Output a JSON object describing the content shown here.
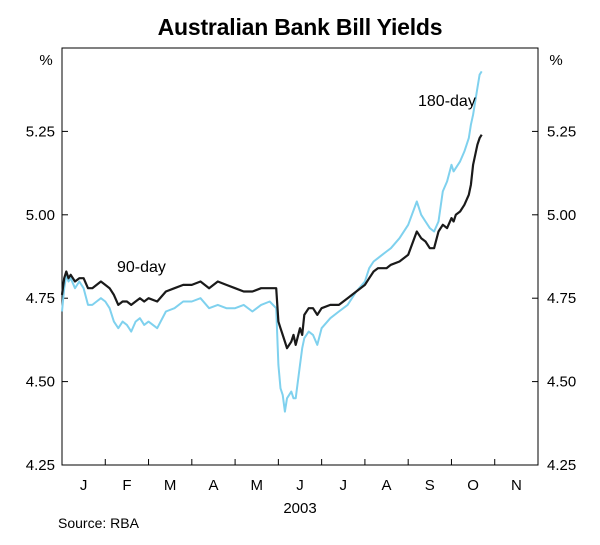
{
  "title": "Australian Bank Bill Yields",
  "source": "Source: RBA",
  "chart_data": {
    "type": "line",
    "title": "Australian Bank Bill Yields",
    "year_label": "2003",
    "unit": "%",
    "ylim": [
      4.25,
      5.5
    ],
    "yticks": [
      "4.25",
      "4.50",
      "4.75",
      "5.00",
      "5.25"
    ],
    "x_months": [
      "J",
      "F",
      "M",
      "A",
      "M",
      "J",
      "J",
      "A",
      "S",
      "O",
      "N"
    ],
    "colors": {
      "90-day": "#1a1a1a",
      "180-day": "#7fd1ee"
    },
    "series": [
      {
        "name": "90-day",
        "x": [
          0,
          0.05,
          0.1,
          0.15,
          0.2,
          0.3,
          0.4,
          0.5,
          0.6,
          0.7,
          0.8,
          0.9,
          1.0,
          1.1,
          1.2,
          1.3,
          1.4,
          1.5,
          1.6,
          1.7,
          1.8,
          1.9,
          2.0,
          2.2,
          2.4,
          2.6,
          2.8,
          3.0,
          3.2,
          3.4,
          3.6,
          3.8,
          4.0,
          4.2,
          4.4,
          4.6,
          4.8,
          4.95,
          5.0,
          5.05,
          5.1,
          5.15,
          5.2,
          5.3,
          5.35,
          5.4,
          5.5,
          5.55,
          5.6,
          5.7,
          5.8,
          5.9,
          6.0,
          6.2,
          6.4,
          6.6,
          6.8,
          7.0,
          7.1,
          7.2,
          7.3,
          7.4,
          7.5,
          7.6,
          7.8,
          8.0,
          8.2,
          8.25,
          8.3,
          8.4,
          8.5,
          8.6,
          8.7,
          8.8,
          8.9,
          9.0,
          9.05,
          9.1,
          9.2,
          9.3,
          9.4,
          9.45,
          9.5,
          9.6,
          9.65,
          9.7
        ],
        "values": [
          4.76,
          4.81,
          4.83,
          4.81,
          4.82,
          4.8,
          4.81,
          4.81,
          4.78,
          4.78,
          4.79,
          4.8,
          4.79,
          4.78,
          4.76,
          4.73,
          4.74,
          4.74,
          4.73,
          4.74,
          4.75,
          4.74,
          4.75,
          4.74,
          4.77,
          4.78,
          4.79,
          4.79,
          4.8,
          4.78,
          4.8,
          4.79,
          4.78,
          4.77,
          4.77,
          4.78,
          4.78,
          4.78,
          4.68,
          4.66,
          4.64,
          4.62,
          4.6,
          4.62,
          4.64,
          4.61,
          4.66,
          4.64,
          4.7,
          4.72,
          4.72,
          4.7,
          4.72,
          4.73,
          4.73,
          4.75,
          4.77,
          4.79,
          4.81,
          4.83,
          4.84,
          4.84,
          4.84,
          4.85,
          4.86,
          4.88,
          4.95,
          4.94,
          4.93,
          4.92,
          4.9,
          4.9,
          4.95,
          4.97,
          4.96,
          4.99,
          4.98,
          5.0,
          5.01,
          5.03,
          5.06,
          5.09,
          5.15,
          5.21,
          5.23,
          5.24
        ]
      },
      {
        "name": "180-day",
        "x": [
          0,
          0.05,
          0.1,
          0.15,
          0.2,
          0.3,
          0.4,
          0.5,
          0.6,
          0.7,
          0.8,
          0.9,
          1.0,
          1.1,
          1.2,
          1.3,
          1.4,
          1.5,
          1.6,
          1.7,
          1.8,
          1.9,
          2.0,
          2.2,
          2.4,
          2.6,
          2.8,
          3.0,
          3.2,
          3.4,
          3.6,
          3.8,
          4.0,
          4.2,
          4.4,
          4.6,
          4.8,
          4.95,
          5.0,
          5.05,
          5.1,
          5.15,
          5.2,
          5.3,
          5.35,
          5.4,
          5.5,
          5.55,
          5.6,
          5.7,
          5.8,
          5.9,
          6.0,
          6.2,
          6.4,
          6.6,
          6.8,
          7.0,
          7.1,
          7.2,
          7.3,
          7.4,
          7.5,
          7.6,
          7.8,
          8.0,
          8.2,
          8.25,
          8.3,
          8.4,
          8.5,
          8.6,
          8.7,
          8.8,
          8.9,
          9.0,
          9.05,
          9.1,
          9.2,
          9.3,
          9.4,
          9.45,
          9.5,
          9.6,
          9.65,
          9.7
        ],
        "values": [
          4.71,
          4.78,
          4.82,
          4.8,
          4.81,
          4.78,
          4.8,
          4.78,
          4.73,
          4.73,
          4.74,
          4.75,
          4.74,
          4.72,
          4.68,
          4.66,
          4.68,
          4.67,
          4.65,
          4.68,
          4.69,
          4.67,
          4.68,
          4.66,
          4.71,
          4.72,
          4.74,
          4.74,
          4.75,
          4.72,
          4.73,
          4.72,
          4.72,
          4.73,
          4.71,
          4.73,
          4.74,
          4.72,
          4.55,
          4.48,
          4.46,
          4.41,
          4.45,
          4.47,
          4.45,
          4.45,
          4.55,
          4.6,
          4.63,
          4.65,
          4.64,
          4.61,
          4.66,
          4.69,
          4.71,
          4.73,
          4.77,
          4.8,
          4.84,
          4.86,
          4.87,
          4.88,
          4.89,
          4.9,
          4.93,
          4.97,
          5.04,
          5.02,
          5.0,
          4.98,
          4.96,
          4.95,
          4.98,
          5.07,
          5.1,
          5.15,
          5.13,
          5.14,
          5.16,
          5.19,
          5.23,
          5.27,
          5.3,
          5.38,
          5.42,
          5.43
        ]
      }
    ],
    "series_labels": [
      "90-day",
      "180-day"
    ]
  }
}
